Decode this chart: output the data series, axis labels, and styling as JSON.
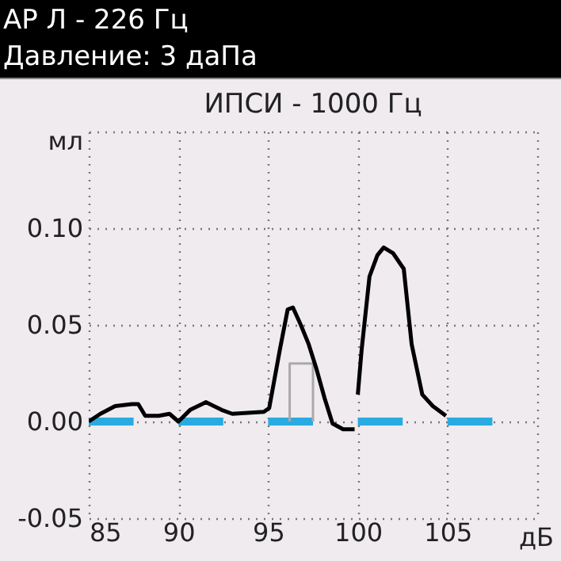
{
  "chart_data": {
    "type": "line",
    "title": "ИПСИ - 1000 Гц",
    "xlabel": "дБ",
    "ylabel": "мл",
    "annotations": [
      "АР Л - 226 Гц",
      "Давление: 3 даПа"
    ],
    "xlim": [
      85,
      110
    ],
    "ylim": [
      -0.05,
      0.15
    ],
    "xticks": [
      85,
      90,
      95,
      100,
      105,
      {
        "value": 110,
        "label": null
      }
    ],
    "yticks": [
      {
        "value": -0.05,
        "label": "-0.05"
      },
      {
        "value": 0,
        "label": "0.00"
      },
      {
        "value": 0.05,
        "label": "0.05"
      },
      {
        "value": 0.1,
        "label": "0.10"
      },
      {
        "value": 0.15,
        "label": null
      }
    ],
    "grid": true,
    "series": [
      {
        "color": "#29abe2",
        "x": [
          85,
          87.5,
          88,
          90,
          92.5,
          93,
          95,
          97.5,
          98,
          100,
          102.5,
          103,
          105,
          107.5
        ],
        "values": [
          0,
          0,
          null,
          0,
          0,
          null,
          0,
          0,
          null,
          0,
          0,
          null,
          0,
          0
        ]
      },
      {
        "color": "#aaaaaa",
        "x": [
          96.2,
          96.2,
          97.5,
          97.5
        ],
        "values": [
          0,
          0.03,
          0.03,
          0
        ]
      },
      {
        "color": "#000000",
        "x": [
          85,
          85.65,
          86.47,
          87.41,
          87.76,
          88.15,
          88.9,
          89.5,
          90,
          90.65,
          91.53,
          92.41,
          93,
          94.76,
          95.06,
          95.65,
          96.09,
          96.38,
          96.82,
          97.26,
          97.7,
          98.15,
          98.59,
          99.18,
          99.82,
          99.9,
          100,
          100.21,
          100.65,
          101.09,
          101.44,
          101.97,
          102.56,
          103,
          103.59,
          104.18,
          104.91
        ],
        "values": [
          0,
          0.004,
          0.008,
          0.009,
          0.009,
          0.003,
          0.003,
          0.004,
          0,
          0.006,
          0.01,
          0.006,
          0.004,
          0.005,
          0.007,
          0.037,
          0.058,
          0.059,
          0.05,
          0.04,
          0.027,
          0.012,
          -0.001,
          -0.004,
          -0.004,
          null,
          0.014,
          0.037,
          0.075,
          0.086,
          0.09,
          0.087,
          0.079,
          0.04,
          0.014,
          0.008,
          0.003
        ]
      }
    ]
  }
}
